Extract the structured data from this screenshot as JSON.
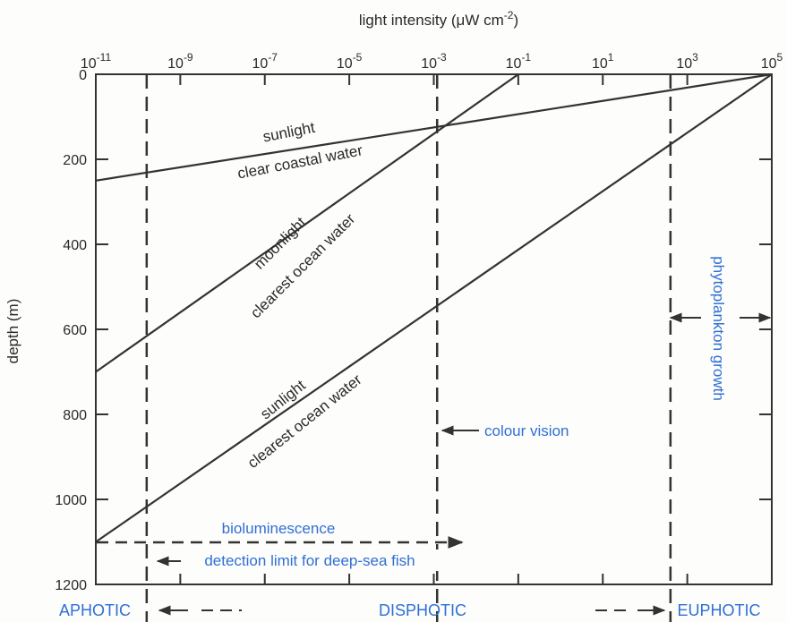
{
  "chart_data": {
    "type": "line",
    "xlabel": "light intensity (μW cm",
    "xlabel_sup": "-2",
    "xlabel_tail": ")",
    "ylabel": "depth (m)",
    "x_scale": "log10",
    "xlim": [
      1e-11,
      100000
    ],
    "ylim": [
      1200,
      0
    ],
    "x_tick_labels": [
      {
        "base": "10",
        "exp": "-11",
        "value": 1e-11
      },
      {
        "base": "10",
        "exp": "-9",
        "value": 1e-09
      },
      {
        "base": "10",
        "exp": "-7",
        "value": 1e-07
      },
      {
        "base": "10",
        "exp": "-5",
        "value": 1e-05
      },
      {
        "base": "10",
        "exp": "-3",
        "value": 0.001
      },
      {
        "base": "10",
        "exp": "-1",
        "value": 0.1
      },
      {
        "base": "10",
        "exp": "1",
        "value": 10
      },
      {
        "base": "10",
        "exp": "3",
        "value": 1000
      },
      {
        "base": "10",
        "exp": "5",
        "value": 100000
      }
    ],
    "y_ticks": [
      0,
      200,
      400,
      600,
      800,
      1000,
      1200
    ],
    "series": [
      {
        "label_lines": [
          "sunlight",
          "clear coastal water"
        ],
        "x": [
          1e-11,
          100000
        ],
        "y": [
          250,
          0
        ]
      },
      {
        "label_lines": [
          "moonlight",
          "clearest ocean water"
        ],
        "x": [
          1e-11,
          0.1
        ],
        "y": [
          700,
          0
        ]
      },
      {
        "label_lines": [
          "sunlight",
          "clearest ocean water"
        ],
        "x": [
          1e-11,
          100000
        ],
        "y": [
          1100,
          0
        ]
      }
    ],
    "reference_lines": [
      {
        "x": 1.6e-10,
        "style": "dashed"
      },
      {
        "x": 0.0012,
        "style": "dashed"
      },
      {
        "x": 400,
        "style": "dashed"
      }
    ],
    "annotations": [
      {
        "text": "bioluminescence"
      },
      {
        "text": "detection limit for deep-sea fish"
      },
      {
        "text": "colour vision"
      },
      {
        "text": "phytoplankton growth"
      }
    ],
    "zones": [
      "APHOTIC",
      "DISPHOTIC",
      "EUPHOTIC"
    ],
    "colors": {
      "line": "#333333",
      "annotation": "#2f6fd6"
    }
  }
}
